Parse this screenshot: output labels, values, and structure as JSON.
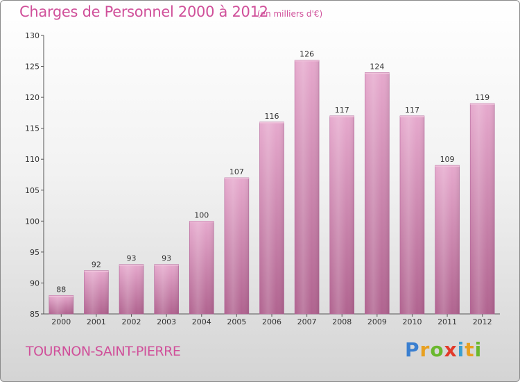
{
  "chart_data": {
    "type": "bar",
    "title": "Charges de Personnel 2000 à 2012",
    "subtitle": "(en milliers d'€)",
    "categories": [
      "2000",
      "2001",
      "2002",
      "2003",
      "2004",
      "2005",
      "2006",
      "2007",
      "2008",
      "2009",
      "2010",
      "2011",
      "2012"
    ],
    "values": [
      88,
      92,
      93,
      93,
      100,
      107,
      116,
      126,
      117,
      124,
      117,
      109,
      119
    ],
    "ylim": [
      85,
      130
    ],
    "yticks": [
      85,
      90,
      95,
      100,
      105,
      110,
      115,
      120,
      125,
      130
    ],
    "grid": false,
    "legend": "none",
    "bar_color": "#d98ab8"
  },
  "footer": {
    "commune": "TOURNON-SAINT-PIERRE"
  },
  "brand": {
    "letters": [
      {
        "char": "P",
        "color": "#3a7fd0"
      },
      {
        "char": "r",
        "color": "#e8a020"
      },
      {
        "char": "o",
        "color": "#6ab82e"
      },
      {
        "char": "x",
        "color": "#e23a2a"
      },
      {
        "char": "i",
        "color": "#3a9fd0"
      },
      {
        "char": "t",
        "color": "#e8a020"
      },
      {
        "char": "i",
        "color": "#6ab82e"
      }
    ]
  }
}
